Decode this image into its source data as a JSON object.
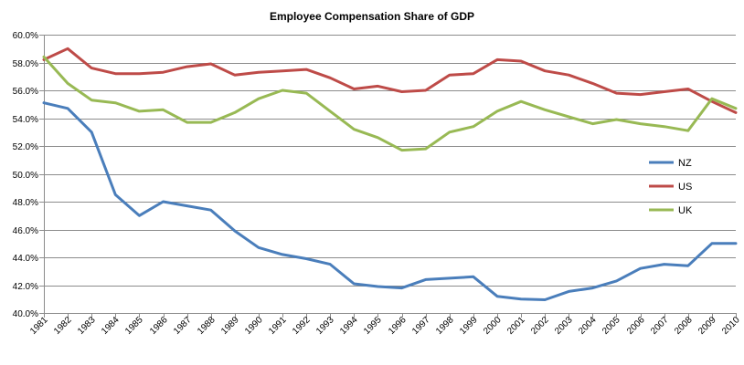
{
  "chart_data": {
    "type": "line",
    "title": "Employee Compensation Share of GDP",
    "xlabel": "",
    "ylabel": "",
    "ylim": [
      40.0,
      60.0
    ],
    "y_ticks": [
      "40.0%",
      "42.0%",
      "44.0%",
      "46.0%",
      "48.0%",
      "50.0%",
      "52.0%",
      "54.0%",
      "56.0%",
      "58.0%",
      "60.0%"
    ],
    "grid": true,
    "legend_position": "right",
    "categories": [
      "1981",
      "1982",
      "1983",
      "1984",
      "1985",
      "1986",
      "1987",
      "1988",
      "1989",
      "1990",
      "1991",
      "1992",
      "1993",
      "1994",
      "1995",
      "1996",
      "1997",
      "1998",
      "1999",
      "2000",
      "2001",
      "2002",
      "2003",
      "2004",
      "2005",
      "2006",
      "2007",
      "2008",
      "2009",
      "2010"
    ],
    "series": [
      {
        "name": "NZ",
        "color": "#4a7ebb",
        "values": [
          55.1,
          54.7,
          53.0,
          48.5,
          47.0,
          48.0,
          47.7,
          47.4,
          45.9,
          44.7,
          44.2,
          43.9,
          43.5,
          42.1,
          41.9,
          41.8,
          42.4,
          42.5,
          42.6,
          41.2,
          41.0,
          40.95,
          41.55,
          41.8,
          42.3,
          43.2,
          43.5,
          43.4,
          45.0,
          45.0
        ]
      },
      {
        "name": "US",
        "color": "#be4b48",
        "values": [
          58.2,
          59.0,
          57.6,
          57.2,
          57.2,
          57.3,
          57.7,
          57.9,
          57.1,
          57.3,
          57.4,
          57.5,
          56.9,
          56.1,
          56.3,
          55.9,
          56.0,
          57.1,
          57.2,
          58.2,
          58.1,
          57.4,
          57.1,
          56.5,
          55.8,
          55.7,
          55.9,
          56.1,
          55.2,
          54.4
        ]
      },
      {
        "name": "UK",
        "color": "#98b954",
        "values": [
          58.4,
          56.5,
          55.3,
          55.1,
          54.5,
          54.6,
          53.7,
          53.7,
          54.4,
          55.4,
          56.0,
          55.8,
          54.5,
          53.2,
          52.6,
          51.7,
          51.8,
          53.0,
          53.4,
          54.5,
          55.2,
          54.6,
          54.1,
          53.6,
          53.9,
          53.6,
          53.4,
          53.1,
          55.4,
          54.7
        ]
      }
    ]
  }
}
